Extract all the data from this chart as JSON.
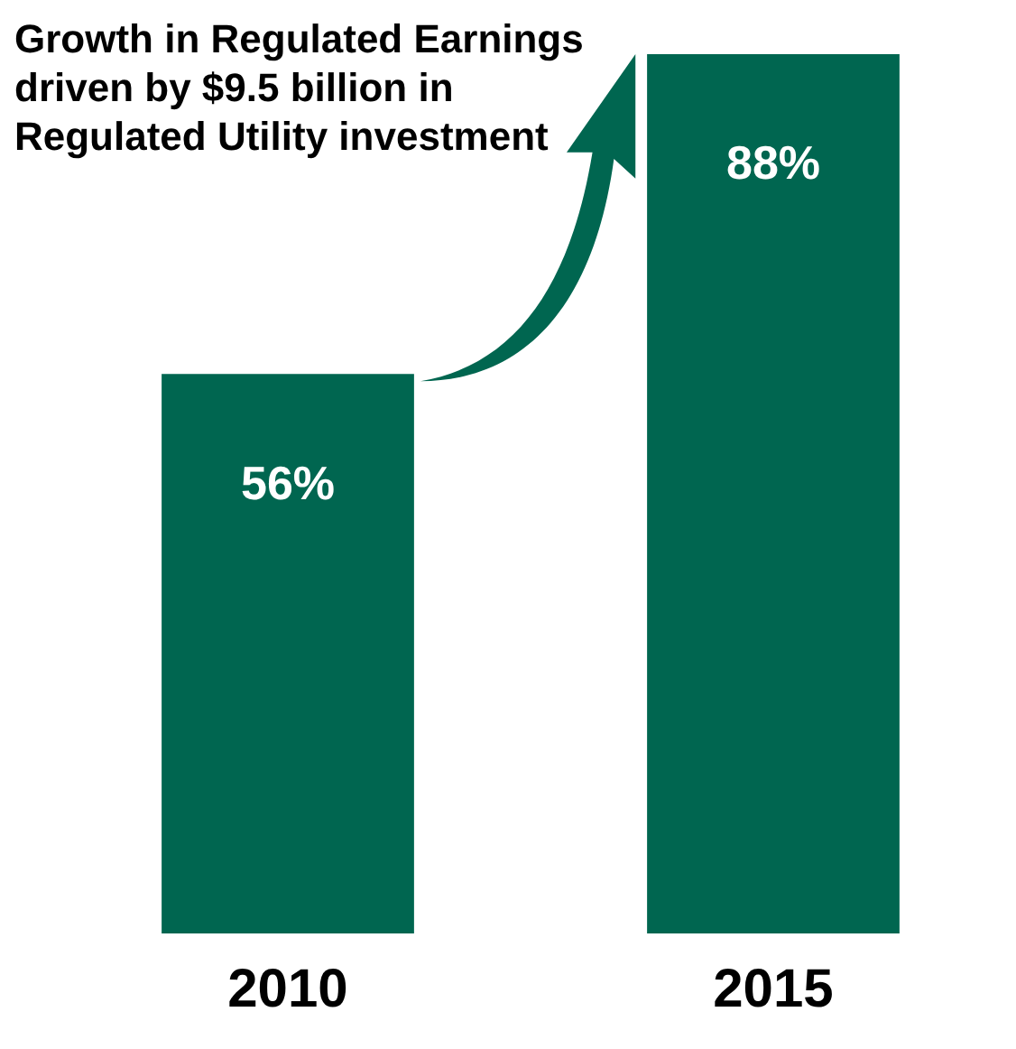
{
  "chart_data": {
    "type": "bar",
    "title": "Growth in Regulated Earnings driven by $9.5 billion in Regulated Utility investment",
    "categories": [
      "2010",
      "2015"
    ],
    "values": [
      56,
      88
    ],
    "value_labels": [
      "56%",
      "88%"
    ],
    "color": "#006650",
    "tick_labels": "x",
    "grid": false,
    "legend": false
  }
}
